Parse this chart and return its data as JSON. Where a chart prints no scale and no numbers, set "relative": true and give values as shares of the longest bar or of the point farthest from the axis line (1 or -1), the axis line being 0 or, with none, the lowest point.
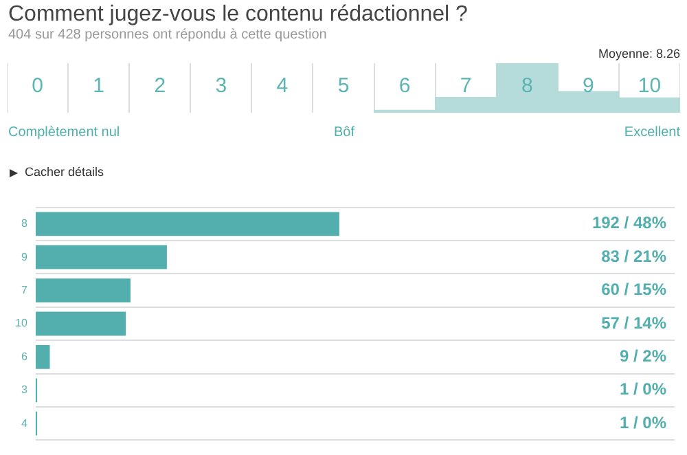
{
  "chart_data": [
    {
      "type": "bar",
      "title": "Comment jugez-vous le contenu rédactionnel ?",
      "subtitle": "404 sur 428 personnes ont répondu à cette question",
      "categories": [
        "0",
        "1",
        "2",
        "3",
        "4",
        "5",
        "6",
        "7",
        "8",
        "9",
        "10"
      ],
      "values": [
        null,
        null,
        null,
        null,
        null,
        null,
        0.05,
        0.31,
        1,
        0.43,
        0.3
      ],
      "color": "#b5dcda",
      "relative": true,
      "grid": "x",
      "tick_labels": "x",
      "annotations": [
        "Moyenne: 8.26",
        "Complètement nul",
        "Bôf",
        "Excellent"
      ]
    },
    {
      "type": "bar",
      "orientation": "horizontal",
      "categories": [
        "8",
        "9",
        "7",
        "10",
        "6",
        "3",
        "4"
      ],
      "values": [
        192,
        83,
        60,
        57,
        9,
        1,
        1
      ],
      "color": "#52afad",
      "xlim": [
        0,
        404
      ],
      "grid": "y",
      "tick_labels": "y",
      "value_labels": [
        "192 / 48%",
        "83 / 21%",
        "60 / 15%",
        "57 / 14%",
        "9 / 2%",
        "1 / 0%",
        "1 / 0%"
      ],
      "annotations": [
        "Cacher détails"
      ]
    }
  ]
}
